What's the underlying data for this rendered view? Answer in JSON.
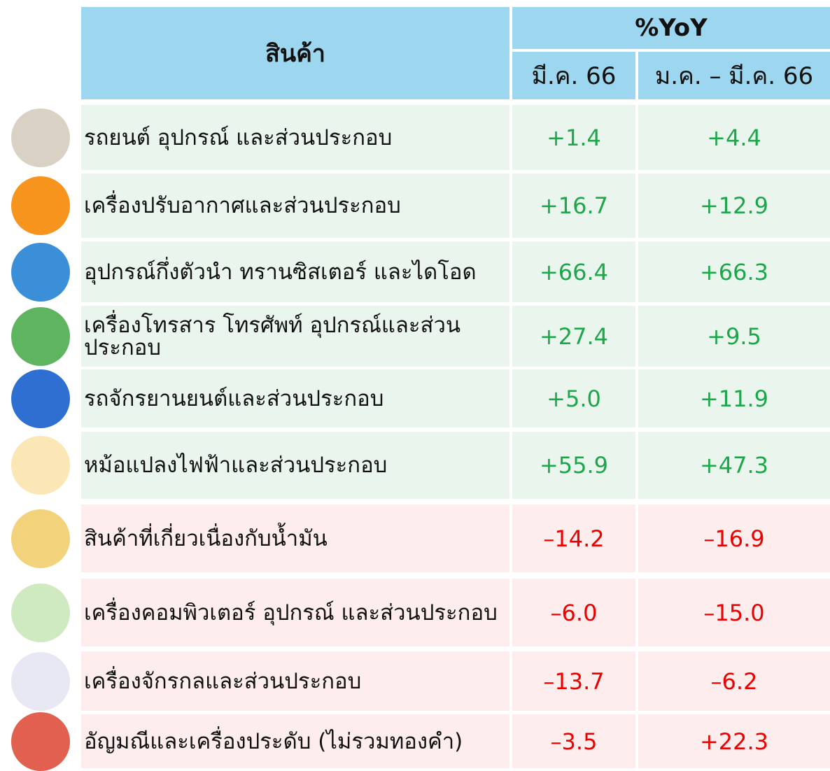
{
  "table": {
    "header": {
      "product": "สินค้า",
      "group": "%YoY",
      "col1": "มี.ค. 66",
      "col2": "ม.ค. – มี.ค. 66"
    },
    "rows": [
      [
        "รถยนต์ อุปกรณ์ และส่วนประกอบ",
        "+1.4",
        "+4.4"
      ],
      [
        "เครื่องปรับอากาศและส่วนประกอบ",
        "+16.7",
        "+12.9"
      ],
      [
        "อุปกรณ์กึ่งตัวนำ ทรานซิสเตอร์ และไดโอด",
        "+66.4",
        "+66.3"
      ],
      [
        "เครื่องโทรสาร โทรศัพท์ อุปกรณ์และส่วนประกอบ",
        "+27.4",
        "+9.5"
      ],
      [
        "รถจักรยานยนต์และส่วนประกอบ",
        "+5.0",
        "+11.9"
      ],
      [
        "หม้อแปลงไฟฟ้าและส่วนประกอบ",
        "+55.9",
        "+47.3"
      ],
      [
        "สินค้าที่เกี่ยวเนื่องกับน้ำมัน",
        "–14.2",
        "–16.9"
      ],
      [
        "เครื่องคอมพิวเตอร์ อุปกรณ์ และส่วนประกอบ",
        "–6.0",
        "–15.0"
      ],
      [
        "เครื่องจักรกลและส่วนประกอบ",
        "–13.7",
        "–6.2"
      ],
      [
        "อัญมณีและเครื่องประดับ (ไม่รวมทองคำ)",
        "–3.5",
        "+22.3"
      ]
    ]
  }
}
